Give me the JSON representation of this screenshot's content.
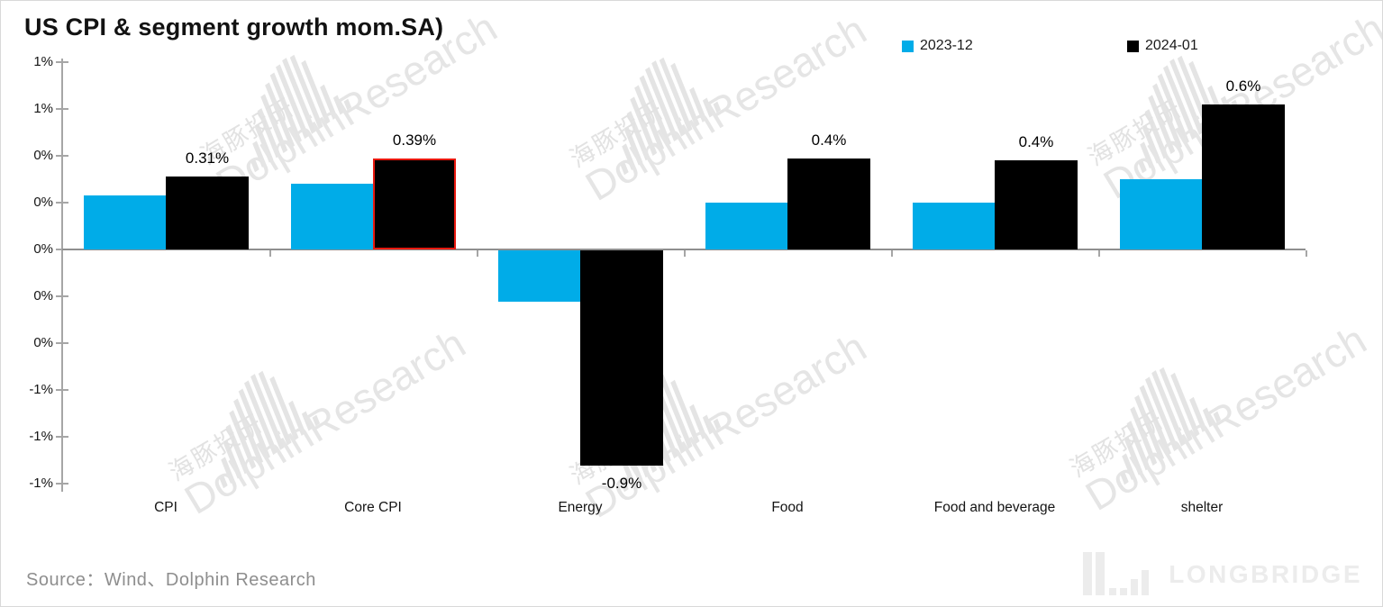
{
  "title": "US CPI & segment growth mom.SA)",
  "legend": [
    {
      "label": "2023-12",
      "color": "#00ACE8"
    },
    {
      "label": "2024-01",
      "color": "#000000"
    }
  ],
  "source": "Source：Wind、Dolphin Research",
  "brand": {
    "logo_text": "LONGBRIDGE"
  },
  "watermark": {
    "cn": "海豚投研",
    "en": "DolphinResearch"
  },
  "chart_data": {
    "type": "bar",
    "title": "US CPI & segment growth mom.SA)",
    "categories": [
      "CPI",
      "Core CPI",
      "Energy",
      "Food",
      "Food and beverage",
      "shelter"
    ],
    "series": [
      {
        "name": "2023-12",
        "color": "#00ACE8",
        "values": [
          0.23,
          0.28,
          -0.22,
          0.2,
          0.2,
          0.3
        ]
      },
      {
        "name": "2024-01",
        "color": "#000000",
        "values": [
          0.31,
          0.39,
          -0.92,
          0.39,
          0.38,
          0.62
        ],
        "labels": [
          "0.31%",
          "0.39%",
          "-0.9%",
          "0.4%",
          "0.4%",
          "0.6%"
        ]
      }
    ],
    "highlight": {
      "series_index": 1,
      "category_index": 1,
      "border_color": "#e8190f"
    },
    "ylim": [
      -1.0,
      0.8
    ],
    "ytick_step": 0.2,
    "ytick_labels": [
      "1%",
      "1%",
      "0%",
      "0%",
      "0%",
      "0%",
      "0%",
      "-1%",
      "-1%",
      "-1%"
    ],
    "grid": false,
    "legend_position": "top"
  }
}
